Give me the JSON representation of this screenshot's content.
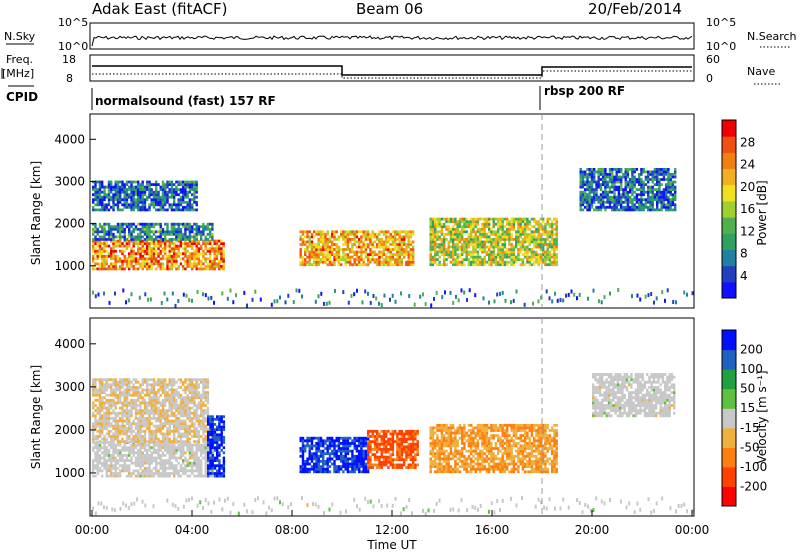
{
  "header": {
    "station": "Adak East (fitACF)",
    "beam": "Beam 06",
    "date": "20/Feb/2014"
  },
  "top_panels": {
    "nsky_label": "N.Sky",
    "nsky_ticks": [
      "10^5",
      "10^0"
    ],
    "nsearch_label": "N.Search",
    "nsearch_ticks": [
      "10^5",
      "10^0"
    ],
    "freq_label_1": "Freq.",
    "freq_label_2": "[MHz]",
    "freq_ticks": [
      "18",
      "8"
    ],
    "nave_label": "Nave",
    "nave_ticks": [
      "60",
      "0"
    ],
    "cpid_label": "CPID",
    "cpid_modes": [
      {
        "name": "normalsound (fast) 157 RF",
        "start_h": 0
      },
      {
        "name": "rbsp 200 RF",
        "start_h": 18
      }
    ]
  },
  "chart_data": [
    {
      "type": "heatmap",
      "quantity": "power",
      "xlabel": "",
      "ylabel": "Slant Range [km]",
      "y_ticks": [
        "1000",
        "2000",
        "3000",
        "4000"
      ],
      "ylim": [
        0,
        4600
      ],
      "xlim": [
        0,
        24
      ],
      "colorbar": {
        "label": "Power [dB]",
        "ticks": [
          "4",
          "8",
          "12",
          "16",
          "20",
          "24",
          "28"
        ],
        "range": [
          0,
          32
        ],
        "colors": [
          "#1010ff",
          "#2040c0",
          "#2080a0",
          "#30a060",
          "#50b050",
          "#a0d030",
          "#f0e020",
          "#f0b020",
          "#f08010",
          "#f05010",
          "#f00000"
        ]
      },
      "regions": [
        {
          "t0": 0.0,
          "t1": 5.3,
          "r0": 900,
          "r1": 1600,
          "level": 0.75
        },
        {
          "t0": 0.0,
          "t1": 4.8,
          "r0": 1600,
          "r1": 2000,
          "level": 0.25
        },
        {
          "t0": 0.0,
          "t1": 4.2,
          "r0": 2300,
          "r1": 3000,
          "level": 0.18
        },
        {
          "t0": 8.3,
          "t1": 12.8,
          "r0": 1000,
          "r1": 1800,
          "level": 0.7
        },
        {
          "t0": 13.5,
          "t1": 18.6,
          "r0": 1000,
          "r1": 2100,
          "level": 0.55
        },
        {
          "t0": 19.5,
          "t1": 23.3,
          "r0": 2300,
          "r1": 3300,
          "level": 0.2
        }
      ]
    },
    {
      "type": "heatmap",
      "quantity": "velocity",
      "xlabel": "Time UT",
      "ylabel": "Slant Range [km]",
      "y_ticks": [
        "1000",
        "2000",
        "3000",
        "4000"
      ],
      "ylim": [
        0,
        4600
      ],
      "xlim": [
        0,
        24
      ],
      "x_ticks": [
        "00:00",
        "04:00",
        "08:00",
        "12:00",
        "16:00",
        "20:00",
        "00:00"
      ],
      "colorbar": {
        "label": "Velocity [m s⁻¹]",
        "ticks": [
          "200",
          "100",
          "50",
          "15",
          "-15",
          "-50",
          "-100",
          "-200"
        ],
        "range": [
          -250,
          250
        ],
        "colors": [
          "#ff0000",
          "#ff4000",
          "#ff8010",
          "#f0b040",
          "#c8c8c8",
          "#60c040",
          "#20a040",
          "#2060c0",
          "#0010ff"
        ]
      },
      "regions": [
        {
          "t0": 0.0,
          "t1": 4.8,
          "r0": 900,
          "r1": 1700,
          "value": 0
        },
        {
          "t0": 0.0,
          "t1": 4.6,
          "r0": 1700,
          "r1": 3200,
          "value": -20
        },
        {
          "t0": 4.6,
          "t1": 5.3,
          "r0": 900,
          "r1": 2300,
          "value": 200
        },
        {
          "t0": 8.3,
          "t1": 11.0,
          "r0": 1000,
          "r1": 1800,
          "value": 200
        },
        {
          "t0": 11.0,
          "t1": 13.0,
          "r0": 1100,
          "r1": 2000,
          "value": -150
        },
        {
          "t0": 13.5,
          "t1": 18.6,
          "r0": 1000,
          "r1": 2100,
          "value": -80
        },
        {
          "t0": 20.0,
          "t1": 23.3,
          "r0": 2300,
          "r1": 3300,
          "value": 0
        }
      ]
    }
  ]
}
